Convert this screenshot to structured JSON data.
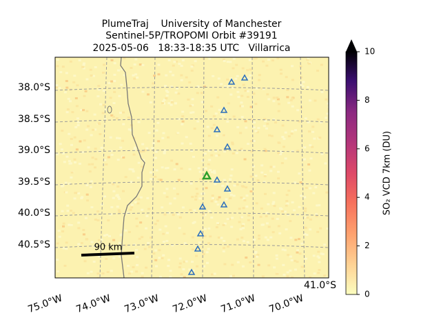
{
  "title": [
    "PlumeTraj    University of Manchester",
    "Sentinel-5P/TROPOMI Orbit #39191",
    "2025-05-06   18:33-18:35 UTC   Villarrica"
  ],
  "map": {
    "lat_labels": [
      "38.0°S",
      "38.5°S",
      "39.0°S",
      "39.5°S",
      "40.0°S",
      "40.5°S",
      "41.0°S"
    ],
    "lon_labels": [
      "75.0°W",
      "74.0°W",
      "73.0°W",
      "72.0°W",
      "71.0°W",
      "70.0°W"
    ],
    "scale_label": "90 km"
  },
  "colorbar": {
    "label": "SO₂ VCD 7km (DU)",
    "ylim": [
      0,
      10
    ],
    "yticks": [
      0,
      2,
      4,
      6,
      8,
      10
    ]
  }
}
